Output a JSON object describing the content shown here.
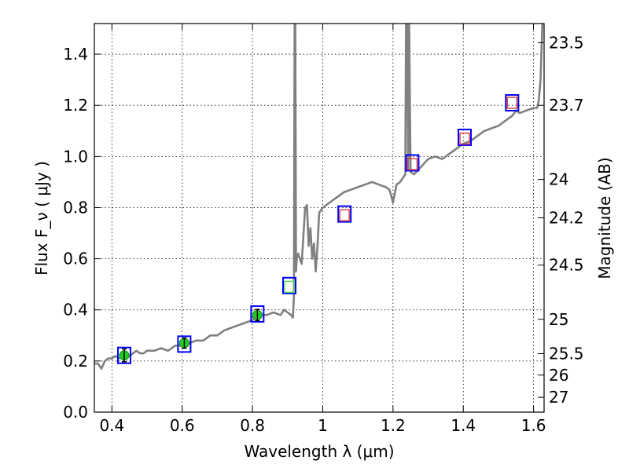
{
  "chart_data": {
    "type": "line",
    "xlabel": "Wavelength  λ (μm)",
    "ylabel": "Flux  F_ν  ( μJy )",
    "ylabel_right": "Magnitude (AB)",
    "xlim": [
      0.35,
      1.63
    ],
    "ylim": [
      0.0,
      1.52
    ],
    "grid": true,
    "x_ticks": [
      0.4,
      0.6,
      0.8,
      1.0,
      1.2,
      1.4,
      1.6
    ],
    "x_tick_labels": [
      "0.4",
      "0.6",
      "0.8",
      "1",
      "1.2",
      "1.4",
      "1.6"
    ],
    "y_ticks": [
      0.0,
      0.2,
      0.4,
      0.6,
      0.8,
      1.0,
      1.2,
      1.4
    ],
    "y_tick_labels": [
      "0.0",
      "0.2",
      "0.4",
      "0.6",
      "0.8",
      "1.0",
      "1.2",
      "1.4"
    ],
    "right_ticks": [
      {
        "label": "23.5",
        "flux": 1.445
      },
      {
        "label": "23.7",
        "flux": 1.2
      },
      {
        "label": "24",
        "flux": 0.91
      },
      {
        "label": "24.2",
        "flux": 0.76
      },
      {
        "label": "24.5",
        "flux": 0.575
      },
      {
        "label": "25",
        "flux": 0.363
      },
      {
        "label": "25.5",
        "flux": 0.229
      },
      {
        "label": "26",
        "flux": 0.145
      },
      {
        "label": "27",
        "flux": 0.058
      }
    ],
    "spectrum": {
      "color": "#808080",
      "x": [
        0.35,
        0.36,
        0.37,
        0.38,
        0.39,
        0.4,
        0.41,
        0.42,
        0.43,
        0.44,
        0.45,
        0.46,
        0.47,
        0.48,
        0.49,
        0.5,
        0.52,
        0.54,
        0.56,
        0.58,
        0.6,
        0.62,
        0.64,
        0.66,
        0.68,
        0.7,
        0.72,
        0.74,
        0.76,
        0.78,
        0.8,
        0.82,
        0.84,
        0.86,
        0.88,
        0.89,
        0.9,
        0.91,
        0.915,
        0.918,
        0.92,
        0.922,
        0.924,
        0.926,
        0.93,
        0.94,
        0.95,
        0.955,
        0.96,
        0.965,
        0.97,
        0.975,
        0.98,
        0.985,
        0.99,
        1.0,
        1.02,
        1.04,
        1.06,
        1.08,
        1.1,
        1.12,
        1.14,
        1.16,
        1.18,
        1.19,
        1.2,
        1.21,
        1.22,
        1.23,
        1.235,
        1.237,
        1.24,
        1.243,
        1.246,
        1.25,
        1.26,
        1.28,
        1.3,
        1.32,
        1.34,
        1.36,
        1.38,
        1.4,
        1.42,
        1.44,
        1.46,
        1.48,
        1.5,
        1.52,
        1.54,
        1.55,
        1.56,
        1.58,
        1.6,
        1.61,
        1.615,
        1.62,
        1.625,
        1.63
      ],
      "y": [
        0.19,
        0.19,
        0.17,
        0.2,
        0.21,
        0.21,
        0.22,
        0.21,
        0.22,
        0.23,
        0.22,
        0.23,
        0.24,
        0.23,
        0.23,
        0.24,
        0.24,
        0.25,
        0.24,
        0.26,
        0.26,
        0.27,
        0.28,
        0.28,
        0.3,
        0.3,
        0.32,
        0.33,
        0.34,
        0.35,
        0.36,
        0.38,
        0.38,
        0.39,
        0.38,
        0.4,
        0.39,
        0.38,
        0.37,
        0.45,
        1.52,
        1.52,
        0.55,
        0.6,
        0.62,
        0.58,
        0.8,
        0.81,
        0.65,
        0.72,
        0.6,
        0.66,
        0.55,
        0.65,
        0.78,
        0.8,
        0.82,
        0.84,
        0.86,
        0.87,
        0.88,
        0.89,
        0.9,
        0.89,
        0.88,
        0.87,
        0.82,
        0.89,
        0.9,
        0.92,
        0.93,
        1.52,
        1.52,
        0.95,
        1.52,
        0.94,
        0.93,
        0.96,
        0.99,
        1.0,
        0.99,
        1.01,
        1.03,
        1.05,
        1.06,
        1.08,
        1.1,
        1.11,
        1.12,
        1.14,
        1.16,
        1.18,
        1.17,
        1.18,
        1.19,
        1.19,
        1.22,
        1.3,
        1.52,
        1.52
      ]
    },
    "photometry": [
      {
        "x": 0.435,
        "model": 0.222,
        "obs": 0.222,
        "err": 0.025,
        "type": "measured"
      },
      {
        "x": 0.606,
        "model": 0.266,
        "obs": 0.27,
        "err": 0.02,
        "type": "measured"
      },
      {
        "x": 0.814,
        "model": 0.384,
        "obs": 0.38,
        "err": 0.022,
        "type": "measured"
      },
      {
        "x": 0.905,
        "model": 0.495,
        "obs": 0.49,
        "type": "synthetic-green"
      },
      {
        "x": 1.062,
        "model": 0.775,
        "obs": 0.77,
        "type": "synthetic-red"
      },
      {
        "x": 1.255,
        "model": 0.975,
        "obs": 0.97,
        "type": "synthetic-red"
      },
      {
        "x": 1.404,
        "model": 1.075,
        "obs": 1.07,
        "type": "synthetic-red"
      },
      {
        "x": 1.539,
        "model": 1.21,
        "obs": 1.21,
        "type": "synthetic-red"
      }
    ],
    "colors": {
      "model_box": "#0000ff",
      "measured_fill": "#22cc22",
      "synthetic_green": "#55dd55",
      "synthetic_red": "#dd4444",
      "grid": "#000000"
    }
  }
}
